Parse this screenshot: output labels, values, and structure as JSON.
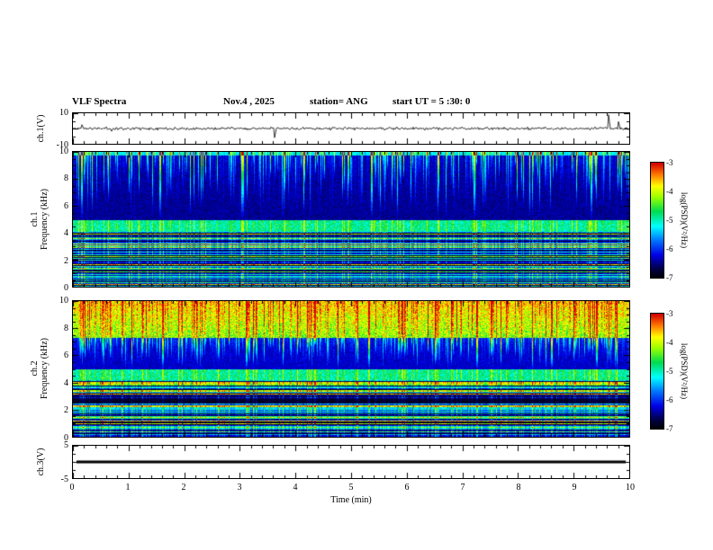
{
  "header": {
    "title": "VLF Spectra",
    "date": "Nov.4 , 2025",
    "station": "station= ANG",
    "start_ut": "start UT =  5 :30: 0"
  },
  "xaxis": {
    "label": "Time (min)",
    "min": 0,
    "max": 10,
    "ticks": [
      0,
      1,
      2,
      3,
      4,
      5,
      6,
      7,
      8,
      9,
      10
    ],
    "minor_step": 0.2
  },
  "colorbar": {
    "label": "log(PSD)(V²/Hz)",
    "min": -7,
    "max": -3,
    "ticks": [
      -3,
      -4,
      -5,
      -6,
      -7
    ]
  },
  "colormap_stops": [
    [
      0.0,
      [
        0,
        0,
        0
      ]
    ],
    [
      0.08,
      [
        0,
        0,
        70
      ]
    ],
    [
      0.2,
      [
        0,
        0,
        230
      ]
    ],
    [
      0.33,
      [
        0,
        120,
        255
      ]
    ],
    [
      0.45,
      [
        0,
        255,
        255
      ]
    ],
    [
      0.58,
      [
        0,
        220,
        80
      ]
    ],
    [
      0.7,
      [
        150,
        255,
        0
      ]
    ],
    [
      0.8,
      [
        255,
        255,
        0
      ]
    ],
    [
      0.9,
      [
        255,
        120,
        0
      ]
    ],
    [
      1.0,
      [
        210,
        0,
        0
      ]
    ]
  ],
  "chart_data": [
    {
      "panel": "ch1-voltage",
      "type": "line",
      "ylabel": "ch.1(V)",
      "ylim": [
        -10,
        10
      ],
      "yticks": [
        10,
        -10
      ],
      "ytick_marks": [
        10,
        5,
        0,
        -5,
        -10
      ],
      "seed": 11,
      "noise_amp_v": 0.9,
      "spikes": [
        {
          "t": 0.16,
          "v": 2.5
        },
        {
          "t": 3.63,
          "v": -6
        },
        {
          "t": 9.62,
          "v": 9
        },
        {
          "t": 9.8,
          "v": 4.5
        }
      ],
      "description": "Noisy voltage trace near 0 V across 0-10 min with brief spikes near 3.6 min (negative) and 9.6-9.8 min (positive)."
    },
    {
      "panel": "ch1-spectrogram",
      "type": "heatmap",
      "ylabel_line1": "ch.1",
      "ylabel_line2": "Frequency (kHz)",
      "ylim": [
        0,
        10
      ],
      "yticks": [
        0,
        2,
        4,
        6,
        8,
        10
      ],
      "texture": {
        "seed": 21,
        "hot": null,
        "streak_region": {
          "f_top": 10,
          "f_bottom": 5.0,
          "base": 0.14
        },
        "band": {
          "f_top": 5.0,
          "f_bottom": 4.2,
          "base": 0.5
        },
        "stripes_top_f": 4.2,
        "top_edge_boost": 0.25,
        "event_lines_min": [
          0.15,
          1.55,
          3.05,
          5.35,
          7.2,
          9.3
        ]
      },
      "description": "5-10 kHz mostly dark blue with dense vertical cyan/green sferic streaks descending from 10 kHz; bright cyan band near 4.2-5 kHz; below 4 kHz many quasi-horizontal colored lines (green/cyan/blue) separated by black gaps."
    },
    {
      "panel": "ch2-spectrogram",
      "type": "heatmap",
      "ylabel_line1": "ch.2",
      "ylabel_line2": "Frequency (kHz)",
      "ylim": [
        0,
        10
      ],
      "yticks": [
        0,
        2,
        4,
        6,
        8,
        10
      ],
      "texture": {
        "seed": 57,
        "hot": {
          "f_top": 10,
          "f_bottom": 7.3,
          "base": 0.72
        },
        "streak_region": {
          "f_top": 7.3,
          "f_bottom": 5.0,
          "base": 0.18
        },
        "band": {
          "f_top": 5.0,
          "f_bottom": 4.2,
          "base": 0.5
        },
        "stripes_top_f": 4.2,
        "top_edge_boost": 0,
        "event_lines_min": [
          1.6,
          3.1,
          5.3,
          7.25,
          8.6,
          9.4
        ]
      },
      "description": "7.3-10 kHz intensely bright (yellow/orange/red with green mix); 5-7.3 kHz blue with green streaks; cyan band near 4.2-5 kHz; below 4 kHz horizontal banded lines over black."
    },
    {
      "panel": "ch3-voltage",
      "type": "line",
      "ylabel": "ch.3(V)",
      "ylim": [
        -5,
        5
      ],
      "yticks": [
        5,
        -5
      ],
      "ytick_marks": [
        5,
        2.5,
        0,
        -2.5,
        -5
      ],
      "flat_value": 0,
      "description": "Flat thick black line at 0 V for the whole 10 minutes."
    }
  ]
}
